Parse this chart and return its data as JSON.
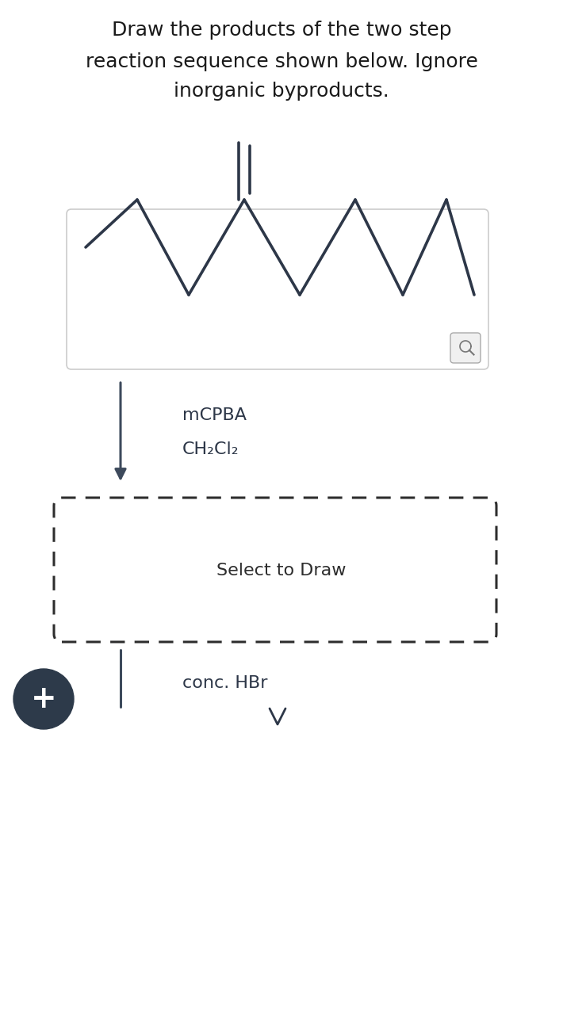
{
  "title_line1": "Draw the products of the two step",
  "title_line2": "reaction sequence shown below. Ignore",
  "title_line3": "inorganic byproducts.",
  "title_fontsize": 18,
  "title_color": "#1a1a1a",
  "bg_color": "#ffffff",
  "molecule_color": "#2d3748",
  "molecule_lw": 2.6,
  "box1_border": "#cccccc",
  "reagent1_line1": "mCPBA",
  "reagent1_line2": "CH₂Cl₂",
  "reagent_fontsize": 16,
  "reagent_color": "#2d3748",
  "arrow_color": "#3d4a5c",
  "select_text": "Select to Draw",
  "select_fontsize": 16,
  "select_color": "#2d2d2d",
  "dashed_box_color": "#2d2d2d",
  "plus_bg": "#2d3a4a",
  "plus_color": "#ffffff",
  "reagent2": "conc. HBr",
  "reagent2_fontsize": 16,
  "chevron_color": "#2d3748",
  "mag_border": "#aaaaaa",
  "mag_bg": "#f0f0f0"
}
